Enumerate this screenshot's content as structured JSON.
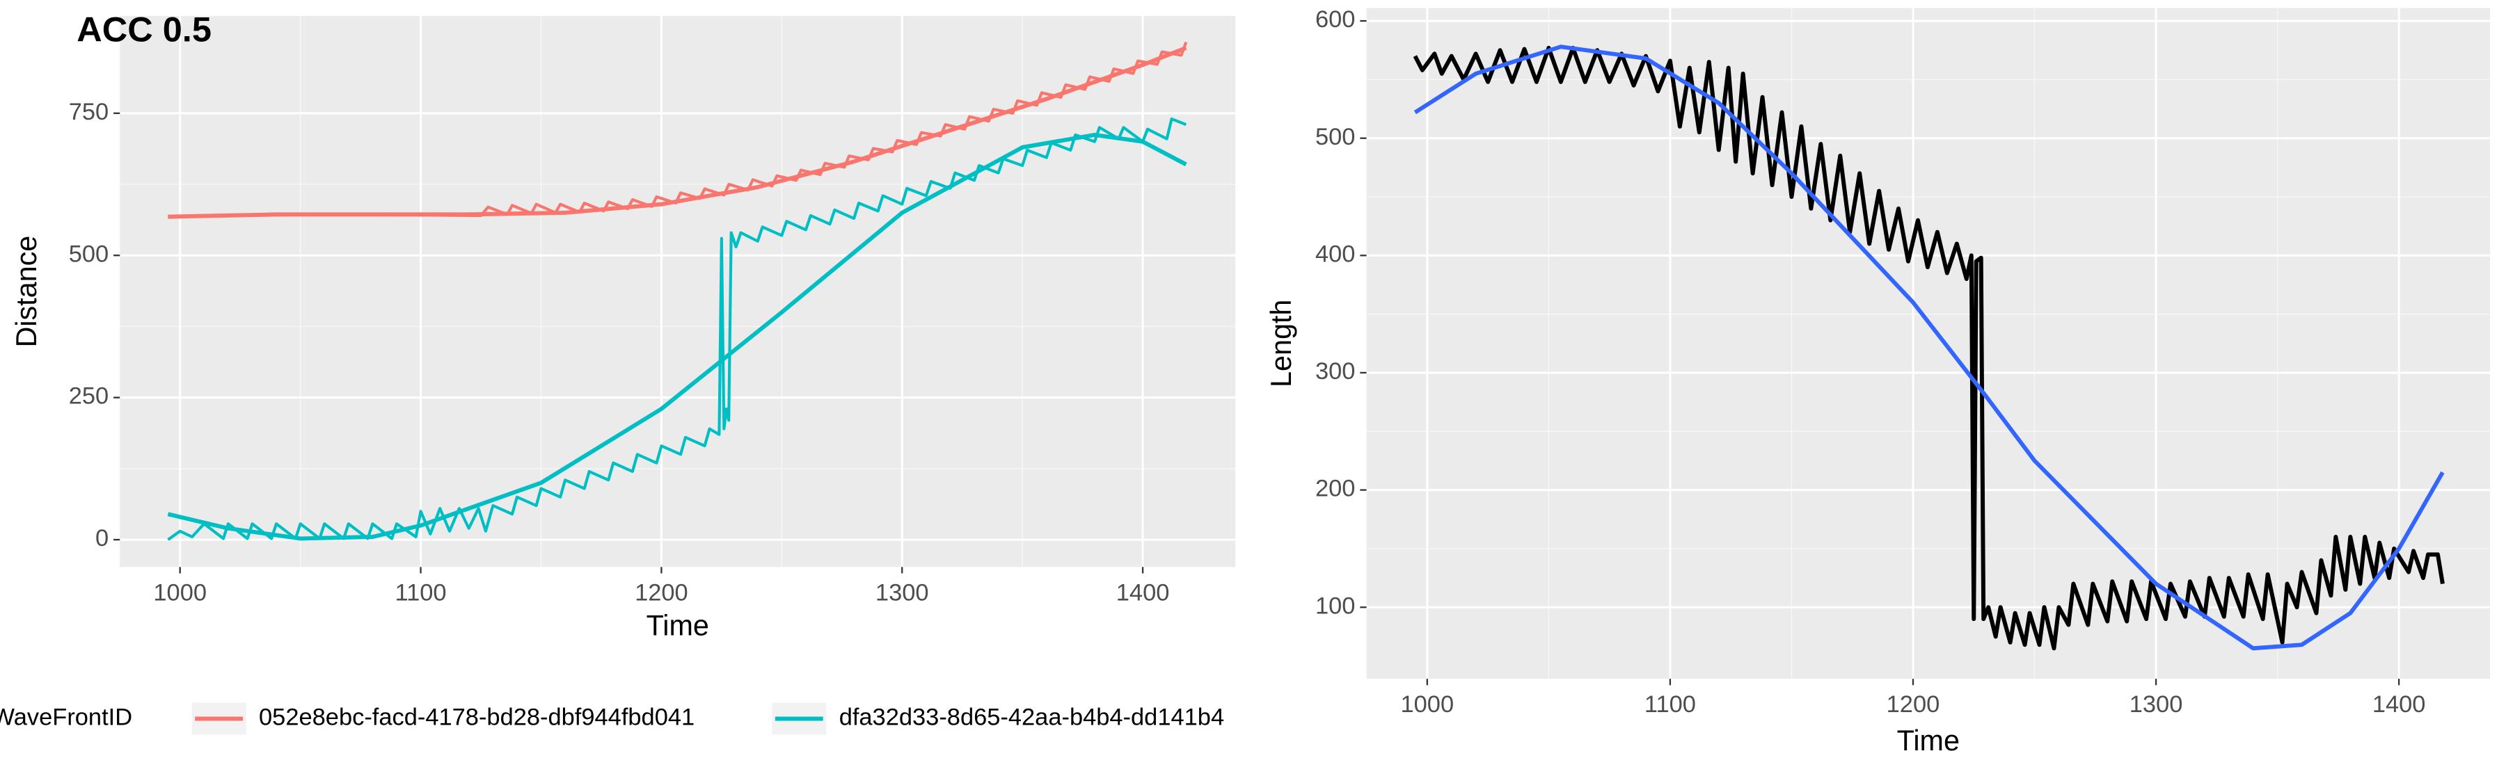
{
  "chart_data": [
    {
      "type": "line",
      "title": "ACC 0.5",
      "x_label": "Time",
      "y_label": "Distance",
      "legend_title": "WaveFrontID",
      "xlim": [
        975,
        1438.5
      ],
      "ylim": [
        -48,
        921
      ],
      "xticks": [
        1000,
        1100,
        1200,
        1300,
        1400
      ],
      "yticks": [
        0,
        250,
        500,
        750
      ],
      "grid": true,
      "series": [
        {
          "name": "052e8ebc-facd-4178-bd28-dbf944fbd041",
          "color": "#F8766D",
          "x": [
            995,
            1060,
            1125,
            1128,
            1136,
            1138,
            1146,
            1148,
            1156,
            1158,
            1166,
            1168,
            1176,
            1178,
            1186,
            1188,
            1196,
            1198,
            1206,
            1208,
            1216,
            1218,
            1226,
            1228,
            1236,
            1238,
            1246,
            1248,
            1256,
            1258,
            1266,
            1268,
            1276,
            1278,
            1286,
            1288,
            1296,
            1298,
            1306,
            1308,
            1316,
            1318,
            1326,
            1328,
            1336,
            1338,
            1346,
            1348,
            1356,
            1358,
            1366,
            1368,
            1376,
            1378,
            1386,
            1388,
            1396,
            1398,
            1406,
            1408,
            1416,
            1418
          ],
          "values": [
            568,
            572,
            570,
            585,
            572,
            588,
            574,
            590,
            575,
            590,
            576,
            592,
            578,
            594,
            582,
            598,
            586,
            603,
            592,
            610,
            600,
            617,
            606,
            625,
            615,
            633,
            622,
            640,
            632,
            650,
            642,
            662,
            655,
            675,
            668,
            688,
            682,
            702,
            695,
            716,
            710,
            730,
            722,
            744,
            736,
            757,
            750,
            772,
            764,
            786,
            778,
            800,
            792,
            814,
            806,
            828,
            820,
            842,
            836,
            858,
            852,
            875
          ]
        },
        {
          "name": "dfa32d33-8d65-42aa-b4b4-dd141b4",
          "color": "#00BFC4",
          "x": [
            995,
            1000,
            1005,
            1010,
            1018,
            1020,
            1028,
            1030,
            1038,
            1040,
            1048,
            1050,
            1058,
            1060,
            1068,
            1070,
            1078,
            1080,
            1088,
            1090,
            1098,
            1100,
            1104,
            1108,
            1112,
            1116,
            1120,
            1124,
            1127,
            1130,
            1138,
            1140,
            1148,
            1150,
            1158,
            1160,
            1168,
            1170,
            1178,
            1180,
            1188,
            1190,
            1198,
            1200,
            1208,
            1210,
            1218,
            1220,
            1224,
            1225,
            1226,
            1227,
            1228,
            1229,
            1231,
            1233,
            1240,
            1242,
            1250,
            1252,
            1260,
            1262,
            1270,
            1272,
            1280,
            1282,
            1290,
            1292,
            1300,
            1302,
            1310,
            1312,
            1320,
            1322,
            1330,
            1332,
            1340,
            1342,
            1350,
            1352,
            1360,
            1362,
            1370,
            1372,
            1380,
            1382,
            1390,
            1392,
            1400,
            1402,
            1410,
            1412,
            1418
          ],
          "values": [
            0,
            15,
            5,
            28,
            2,
            28,
            2,
            28,
            2,
            28,
            2,
            28,
            2,
            28,
            2,
            28,
            2,
            28,
            2,
            28,
            5,
            50,
            10,
            55,
            15,
            55,
            20,
            55,
            15,
            60,
            45,
            75,
            60,
            90,
            75,
            105,
            90,
            120,
            105,
            135,
            120,
            150,
            135,
            165,
            150,
            180,
            165,
            195,
            185,
            530,
            195,
            230,
            210,
            540,
            515,
            540,
            525,
            550,
            535,
            560,
            545,
            570,
            555,
            580,
            565,
            592,
            578,
            605,
            590,
            618,
            605,
            630,
            618,
            645,
            632,
            658,
            645,
            670,
            658,
            685,
            672,
            698,
            685,
            712,
            700,
            725,
            705,
            725,
            700,
            722,
            705,
            740,
            730
          ]
        },
        {
          "color": "#F8766D",
          "x": [
            995,
            1040,
            1080,
            1120,
            1160,
            1200,
            1240,
            1280,
            1320,
            1360,
            1400,
            1418
          ],
          "values": [
            568,
            572,
            572,
            572,
            575,
            590,
            620,
            665,
            720,
            775,
            835,
            865
          ]
        },
        {
          "color": "#00BFC4",
          "x": [
            995,
            1020,
            1050,
            1080,
            1100,
            1150,
            1200,
            1250,
            1300,
            1350,
            1380,
            1400,
            1418
          ],
          "values": [
            45,
            20,
            2,
            5,
            25,
            100,
            230,
            400,
            575,
            690,
            712,
            700,
            660
          ]
        }
      ]
    },
    {
      "type": "line",
      "x_label": "Time",
      "y_label": "Length",
      "xlim": [
        975,
        1437.5
      ],
      "ylim": [
        39,
        611
      ],
      "xticks": [
        1000,
        1100,
        1200,
        1300,
        1400
      ],
      "yticks": [
        100,
        200,
        300,
        400,
        500,
        600
      ],
      "grid": true,
      "series": [
        {
          "color": "#000000",
          "x": [
            995,
            998,
            1003,
            1006,
            1010,
            1015,
            1020,
            1025,
            1030,
            1035,
            1040,
            1045,
            1050,
            1055,
            1060,
            1065,
            1070,
            1075,
            1080,
            1085,
            1090,
            1095,
            1100,
            1104,
            1108,
            1112,
            1116,
            1120,
            1124,
            1127,
            1130,
            1134,
            1138,
            1142,
            1146,
            1150,
            1154,
            1158,
            1162,
            1166,
            1170,
            1174,
            1178,
            1182,
            1186,
            1190,
            1194,
            1198,
            1202,
            1206,
            1210,
            1214,
            1218,
            1222,
            1224,
            1225,
            1226,
            1228,
            1229,
            1231,
            1234,
            1236,
            1240,
            1242,
            1246,
            1248,
            1252,
            1254,
            1258,
            1260,
            1264,
            1266,
            1272,
            1274,
            1280,
            1282,
            1288,
            1290,
            1296,
            1298,
            1304,
            1306,
            1312,
            1314,
            1320,
            1322,
            1328,
            1330,
            1336,
            1338,
            1344,
            1346,
            1352,
            1354,
            1358,
            1360,
            1366,
            1368,
            1372,
            1374,
            1378,
            1380,
            1384,
            1386,
            1390,
            1392,
            1396,
            1398,
            1404,
            1406,
            1410,
            1412,
            1416,
            1418
          ],
          "values": [
            570,
            558,
            572,
            555,
            570,
            550,
            572,
            548,
            575,
            548,
            576,
            548,
            577,
            548,
            577,
            548,
            575,
            548,
            572,
            545,
            570,
            540,
            566,
            510,
            560,
            505,
            565,
            490,
            560,
            480,
            555,
            470,
            535,
            460,
            522,
            450,
            510,
            440,
            495,
            430,
            485,
            420,
            470,
            410,
            455,
            405,
            440,
            395,
            430,
            390,
            420,
            385,
            410,
            380,
            400,
            90,
            395,
            398,
            90,
            100,
            75,
            100,
            70,
            95,
            68,
            95,
            68,
            100,
            65,
            100,
            85,
            120,
            85,
            120,
            88,
            122,
            88,
            122,
            90,
            122,
            90,
            120,
            92,
            122,
            92,
            125,
            92,
            125,
            92,
            128,
            90,
            128,
            70,
            120,
            100,
            130,
            95,
            140,
            110,
            160,
            115,
            160,
            120,
            160,
            125,
            155,
            125,
            150,
            130,
            148,
            125,
            145,
            145,
            120
          ]
        },
        {
          "color": "#3366FF",
          "x": [
            995,
            1020,
            1055,
            1090,
            1120,
            1150,
            1200,
            1230,
            1250,
            1300,
            1340,
            1360,
            1380,
            1400,
            1418
          ],
          "values": [
            522,
            555,
            578,
            568,
            530,
            470,
            360,
            280,
            225,
            120,
            65,
            68,
            95,
            150,
            215
          ]
        }
      ]
    }
  ]
}
